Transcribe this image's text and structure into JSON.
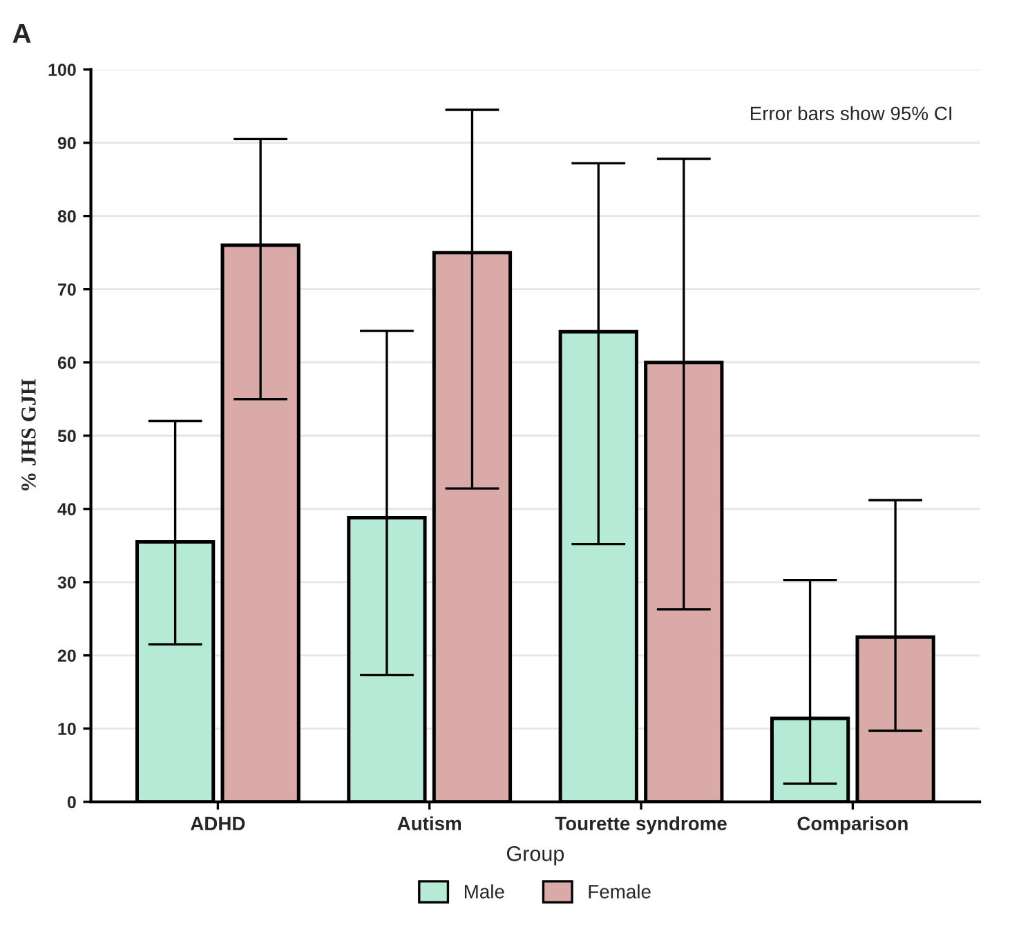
{
  "chart_data": {
    "type": "bar",
    "title": "A",
    "xlabel": "Group",
    "ylabel": "% JHS GJH",
    "categories": [
      "ADHD",
      "Autism",
      "Tourette syndrome",
      "Comparison"
    ],
    "series": [
      {
        "name": "Male",
        "color": "#b5ead7",
        "values": [
          35.5,
          38.8,
          64.2,
          11.4
        ],
        "errors": [
          [
            21.5,
            52
          ],
          [
            17.3,
            64.3
          ],
          [
            35.2,
            87.2
          ],
          [
            2.5,
            30.3
          ]
        ]
      },
      {
        "name": "Female",
        "color": "#d9aaa8",
        "values": [
          76,
          75,
          60,
          22.5
        ],
        "errors": [
          [
            55,
            90.5
          ],
          [
            42.8,
            94.5
          ],
          [
            26.3,
            87.8
          ],
          [
            9.7,
            41.2
          ]
        ]
      }
    ],
    "ylim": [
      0,
      100
    ],
    "yticks": [
      0,
      10,
      20,
      30,
      40,
      50,
      60,
      70,
      80,
      90,
      100
    ],
    "grid": "y",
    "legend": "bottom",
    "annotations": [
      "Error bars show 95% CI"
    ]
  }
}
